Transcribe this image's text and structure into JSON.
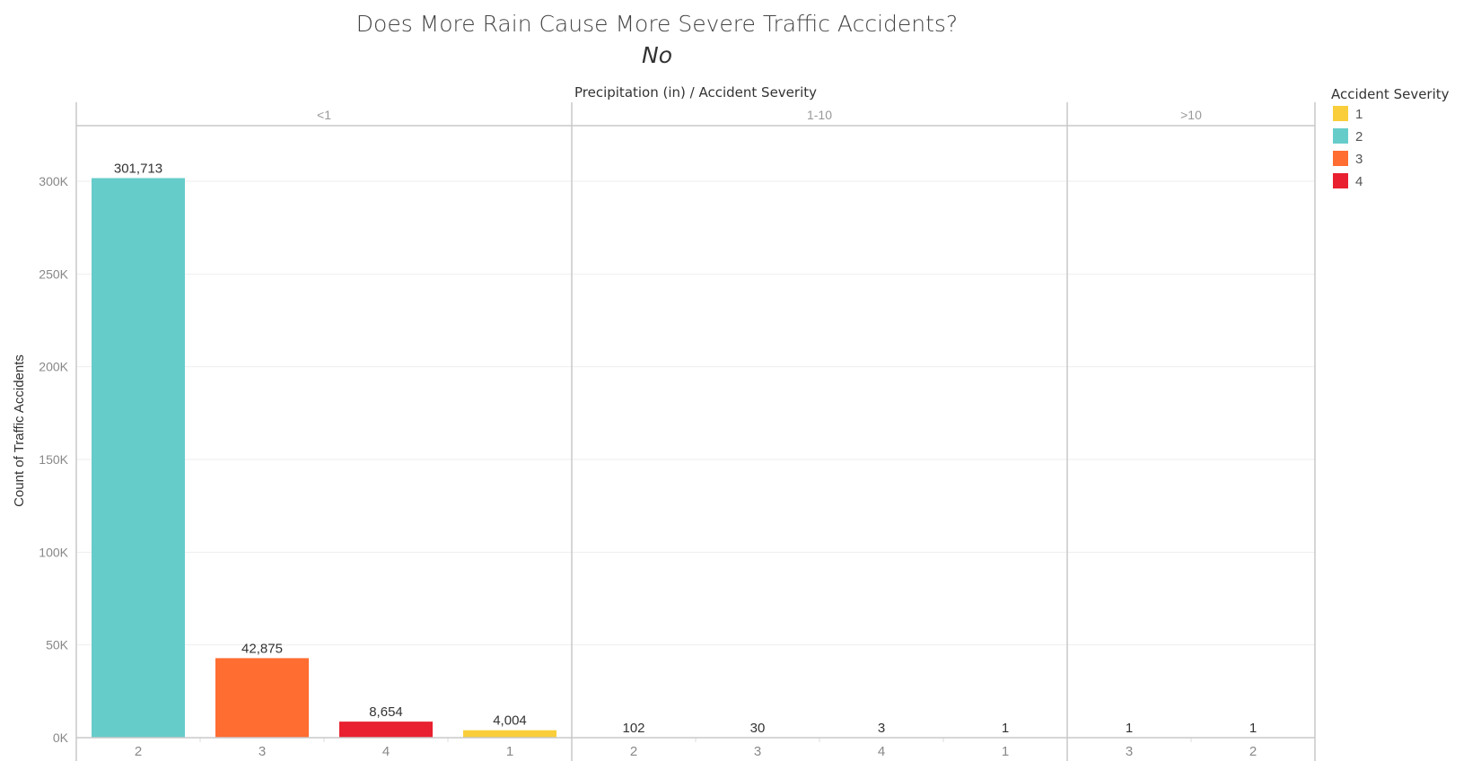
{
  "title": "Does More Rain Cause More Severe Traffic Accidents?",
  "subtitle": "No",
  "chart_data": {
    "type": "bar",
    "column_header": "Precipitation (in)  /  Accident Severity",
    "ylabel": "Count of Traffic Accidents",
    "ylim": [
      0,
      330000
    ],
    "yticks": [
      {
        "value": 0,
        "label": "0K"
      },
      {
        "value": 50000,
        "label": "50K"
      },
      {
        "value": 100000,
        "label": "100K"
      },
      {
        "value": 150000,
        "label": "150K"
      },
      {
        "value": 200000,
        "label": "200K"
      },
      {
        "value": 250000,
        "label": "250K"
      },
      {
        "value": 300000,
        "label": "300K"
      }
    ],
    "grid": true,
    "panels": [
      {
        "label": "<1",
        "bars": [
          {
            "severity": "2",
            "value": 301713,
            "label": "301,713"
          },
          {
            "severity": "3",
            "value": 42875,
            "label": "42,875"
          },
          {
            "severity": "4",
            "value": 8654,
            "label": "8,654"
          },
          {
            "severity": "1",
            "value": 4004,
            "label": "4,004"
          }
        ]
      },
      {
        "label": "1-10",
        "bars": [
          {
            "severity": "2",
            "value": 102,
            "label": "102"
          },
          {
            "severity": "3",
            "value": 30,
            "label": "30"
          },
          {
            "severity": "4",
            "value": 3,
            "label": "3"
          },
          {
            "severity": "1",
            "value": 1,
            "label": "1"
          }
        ]
      },
      {
        "label": ">10",
        "bars": [
          {
            "severity": "3",
            "value": 1,
            "label": "1"
          },
          {
            "severity": "2",
            "value": 1,
            "label": "1"
          }
        ]
      }
    ],
    "legend": {
      "title": "Accident Severity",
      "placement": "right",
      "items": [
        {
          "label": "1",
          "color": "#F9CE3A"
        },
        {
          "label": "2",
          "color": "#66CCCA"
        },
        {
          "label": "3",
          "color": "#FF6D31"
        },
        {
          "label": "4",
          "color": "#E8202F"
        }
      ]
    }
  }
}
